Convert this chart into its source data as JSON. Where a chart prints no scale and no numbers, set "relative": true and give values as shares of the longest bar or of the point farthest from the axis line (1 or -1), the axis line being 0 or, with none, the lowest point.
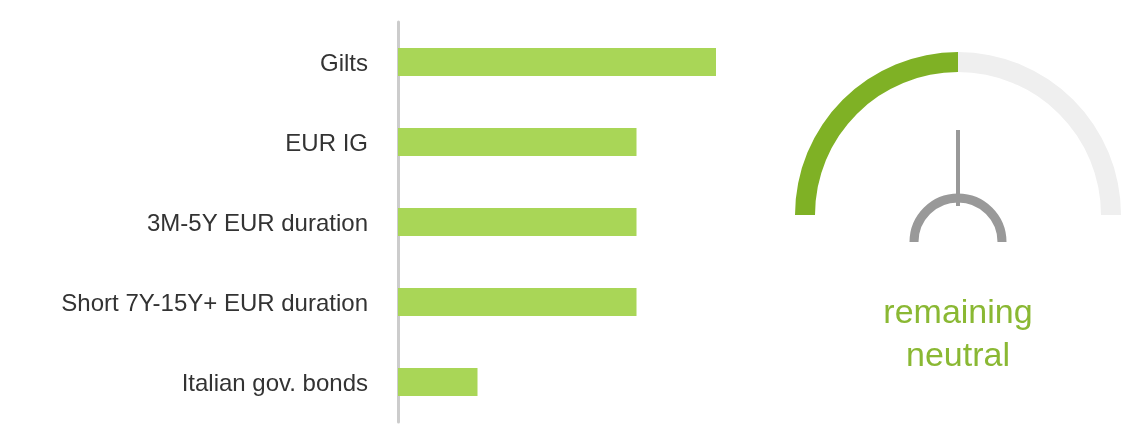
{
  "chart_data": [
    {
      "type": "bar",
      "orientation": "horizontal",
      "relative": true,
      "categories": [
        "Gilts",
        "EUR IG",
        "3M-5Y EUR duration",
        "Short 7Y-15Y+ EUR duration",
        "Italian gov. bonds"
      ],
      "values": [
        1,
        0.75,
        0.75,
        0.75,
        0.25
      ],
      "color": "#a9d657"
    },
    {
      "type": "donut",
      "categories": [
        null,
        null
      ],
      "values": [
        50,
        50
      ],
      "colors": [
        "#7fb125",
        "#efefef"
      ],
      "annotations": [
        "remaining neutral"
      ]
    }
  ]
}
